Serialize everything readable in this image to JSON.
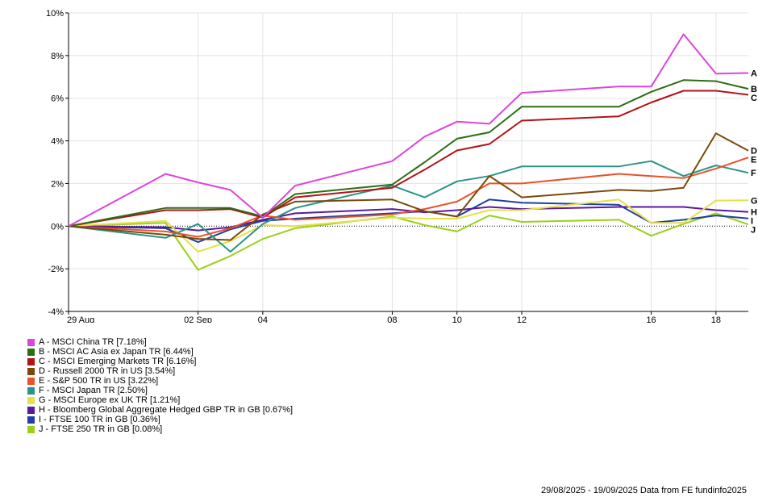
{
  "chart_data": {
    "type": "line",
    "title": "",
    "xlabel": "",
    "ylabel": "",
    "ylim": [
      -4,
      10
    ],
    "y_ticks": [
      -4,
      -2,
      0,
      2,
      4,
      6,
      8,
      10
    ],
    "y_tick_labels": [
      "-4%",
      "-2%",
      "0%",
      "2%",
      "4%",
      "6%",
      "8%",
      "10%"
    ],
    "x_dates": [
      "2025-08-29",
      "2025-09-01",
      "2025-09-02",
      "2025-09-03",
      "2025-09-04",
      "2025-09-05",
      "2025-09-08",
      "2025-09-09",
      "2025-09-10",
      "2025-09-11",
      "2025-09-12",
      "2025-09-15",
      "2025-09-16",
      "2025-09-17",
      "2025-09-18",
      "2025-09-19"
    ],
    "x_ticks": [
      {
        "date": "2025-08-29",
        "label": "29 Aug"
      },
      {
        "date": "2025-09-02",
        "label": "02 Sep"
      },
      {
        "date": "2025-09-04",
        "label": "04"
      },
      {
        "date": "2025-09-08",
        "label": "08"
      },
      {
        "date": "2025-09-10",
        "label": "10"
      },
      {
        "date": "2025-09-12",
        "label": "12"
      },
      {
        "date": "2025-09-16",
        "label": "16"
      },
      {
        "date": "2025-09-18",
        "label": "18"
      }
    ],
    "legend_position": "bottom-left",
    "series": [
      {
        "letter": "A",
        "name": "A - MSCI China TR [7.18%]",
        "color": "#dd44dd",
        "values": [
          0,
          2.45,
          2.05,
          1.7,
          0.4,
          1.9,
          3.05,
          4.2,
          4.9,
          4.8,
          6.25,
          6.55,
          6.55,
          9.0,
          7.15,
          7.18
        ]
      },
      {
        "letter": "B",
        "name": "B - MSCI AC Asia ex Japan TR [6.44%]",
        "color": "#2b6e12",
        "values": [
          0,
          0.85,
          0.85,
          0.85,
          0.45,
          1.5,
          1.95,
          3.0,
          4.1,
          4.4,
          5.6,
          5.6,
          6.3,
          6.85,
          6.8,
          6.44
        ]
      },
      {
        "letter": "C",
        "name": "C - MSCI Emerging Markets TR [6.16%]",
        "color": "#b31218",
        "values": [
          0,
          0.75,
          0.75,
          0.8,
          0.4,
          1.35,
          1.8,
          2.65,
          3.55,
          3.85,
          4.95,
          5.15,
          5.8,
          6.35,
          6.35,
          6.16
        ]
      },
      {
        "letter": "D",
        "name": "D - Russell 2000 TR in US [3.54%]",
        "color": "#7a4a0a",
        "values": [
          0,
          -0.4,
          -0.6,
          -0.65,
          0.55,
          1.15,
          1.25,
          0.7,
          0.45,
          2.35,
          1.35,
          1.7,
          1.65,
          1.8,
          4.35,
          3.54
        ]
      },
      {
        "letter": "E",
        "name": "E - S&P 500 TR in US [3.22%]",
        "color": "#e8532a",
        "values": [
          0,
          -0.25,
          -0.5,
          -0.1,
          0.5,
          0.3,
          0.55,
          0.8,
          1.15,
          2.0,
          2.0,
          2.45,
          2.35,
          2.25,
          2.7,
          3.22
        ]
      },
      {
        "letter": "F",
        "name": "F - MSCI Japan TR [2.50%]",
        "color": "#2a9488",
        "values": [
          0,
          -0.55,
          0.1,
          -1.2,
          0.1,
          0.85,
          1.9,
          1.35,
          2.1,
          2.35,
          2.8,
          2.8,
          3.05,
          2.35,
          2.85,
          2.5
        ]
      },
      {
        "letter": "G",
        "name": "G - MSCI Europe ex UK TR [1.21%]",
        "color": "#e6e04a",
        "values": [
          0,
          0.25,
          -1.2,
          -0.7,
          0.05,
          0.0,
          0.4,
          0.35,
          0.35,
          0.75,
          0.75,
          1.25,
          0.15,
          0.15,
          1.2,
          1.21
        ]
      },
      {
        "letter": "H",
        "name": "H - Bloomberg Global Aggregate Hedged GBP TR in GB [0.67%]",
        "color": "#5a1a9c",
        "values": [
          0,
          -0.05,
          -0.2,
          -0.05,
          0.3,
          0.6,
          0.8,
          0.65,
          0.75,
          0.9,
          0.8,
          0.9,
          0.9,
          0.9,
          0.75,
          0.67
        ]
      },
      {
        "letter": "I",
        "name": "I - FTSE 100 TR in GB [0.36%]",
        "color": "#1f3fa3",
        "values": [
          0,
          -0.1,
          -0.75,
          -0.15,
          0.25,
          0.35,
          0.6,
          0.7,
          0.45,
          1.25,
          1.1,
          1.0,
          0.15,
          0.3,
          0.5,
          0.36
        ]
      },
      {
        "letter": "J",
        "name": "J - FTSE 250 TR in GB [0.08%]",
        "color": "#99d11a",
        "values": [
          0,
          0.15,
          -2.05,
          -1.4,
          -0.6,
          -0.1,
          0.45,
          0.05,
          -0.25,
          0.5,
          0.2,
          0.3,
          -0.45,
          0.1,
          0.6,
          0.08
        ]
      }
    ]
  },
  "footer": {
    "text": "29/08/2025 - 19/09/2025 Data from FE fundinfo2025"
  }
}
